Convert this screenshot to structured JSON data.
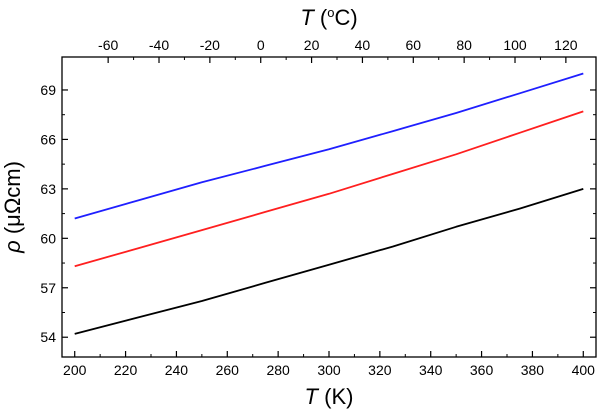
{
  "chart_data": {
    "type": "line",
    "title": "",
    "xlabel_bottom": {
      "symbol": "T",
      "unit": " (K)"
    },
    "xlabel_top": {
      "symbol": "T",
      "unit_open": " (",
      "unit_sup": "o",
      "unit_close": "C)"
    },
    "ylabel": {
      "symbol": "ρ",
      "unit": " (μΩcm)"
    },
    "xlim": [
      195,
      405
    ],
    "ylim": [
      52.8,
      71
    ],
    "x_ticks_bottom": [
      200,
      220,
      240,
      260,
      280,
      300,
      320,
      340,
      360,
      380,
      400
    ],
    "x_ticks_top_celsius": [
      -60,
      -40,
      -20,
      0,
      20,
      40,
      60,
      80,
      100,
      120
    ],
    "y_ticks": [
      54,
      57,
      60,
      63,
      66,
      69
    ],
    "top_axis_offset_K": 273.15,
    "grid": false,
    "series": [
      {
        "name": "blue",
        "color": "#1f1fff",
        "x": [
          200,
          225,
          250,
          275,
          300,
          325,
          350,
          375,
          400
        ],
        "y": [
          61.2,
          62.3,
          63.4,
          64.4,
          65.4,
          66.5,
          67.6,
          68.8,
          70.0
        ]
      },
      {
        "name": "red",
        "color": "#ff1f1f",
        "x": [
          200,
          225,
          250,
          275,
          300,
          325,
          350,
          375,
          400
        ],
        "y": [
          58.3,
          59.4,
          60.5,
          61.6,
          62.7,
          63.9,
          65.1,
          66.4,
          67.7
        ]
      },
      {
        "name": "black",
        "color": "#000000",
        "x": [
          200,
          225,
          250,
          275,
          300,
          325,
          350,
          375,
          400
        ],
        "y": [
          54.2,
          55.2,
          56.2,
          57.3,
          58.4,
          59.5,
          60.7,
          61.8,
          63.0
        ]
      }
    ]
  }
}
